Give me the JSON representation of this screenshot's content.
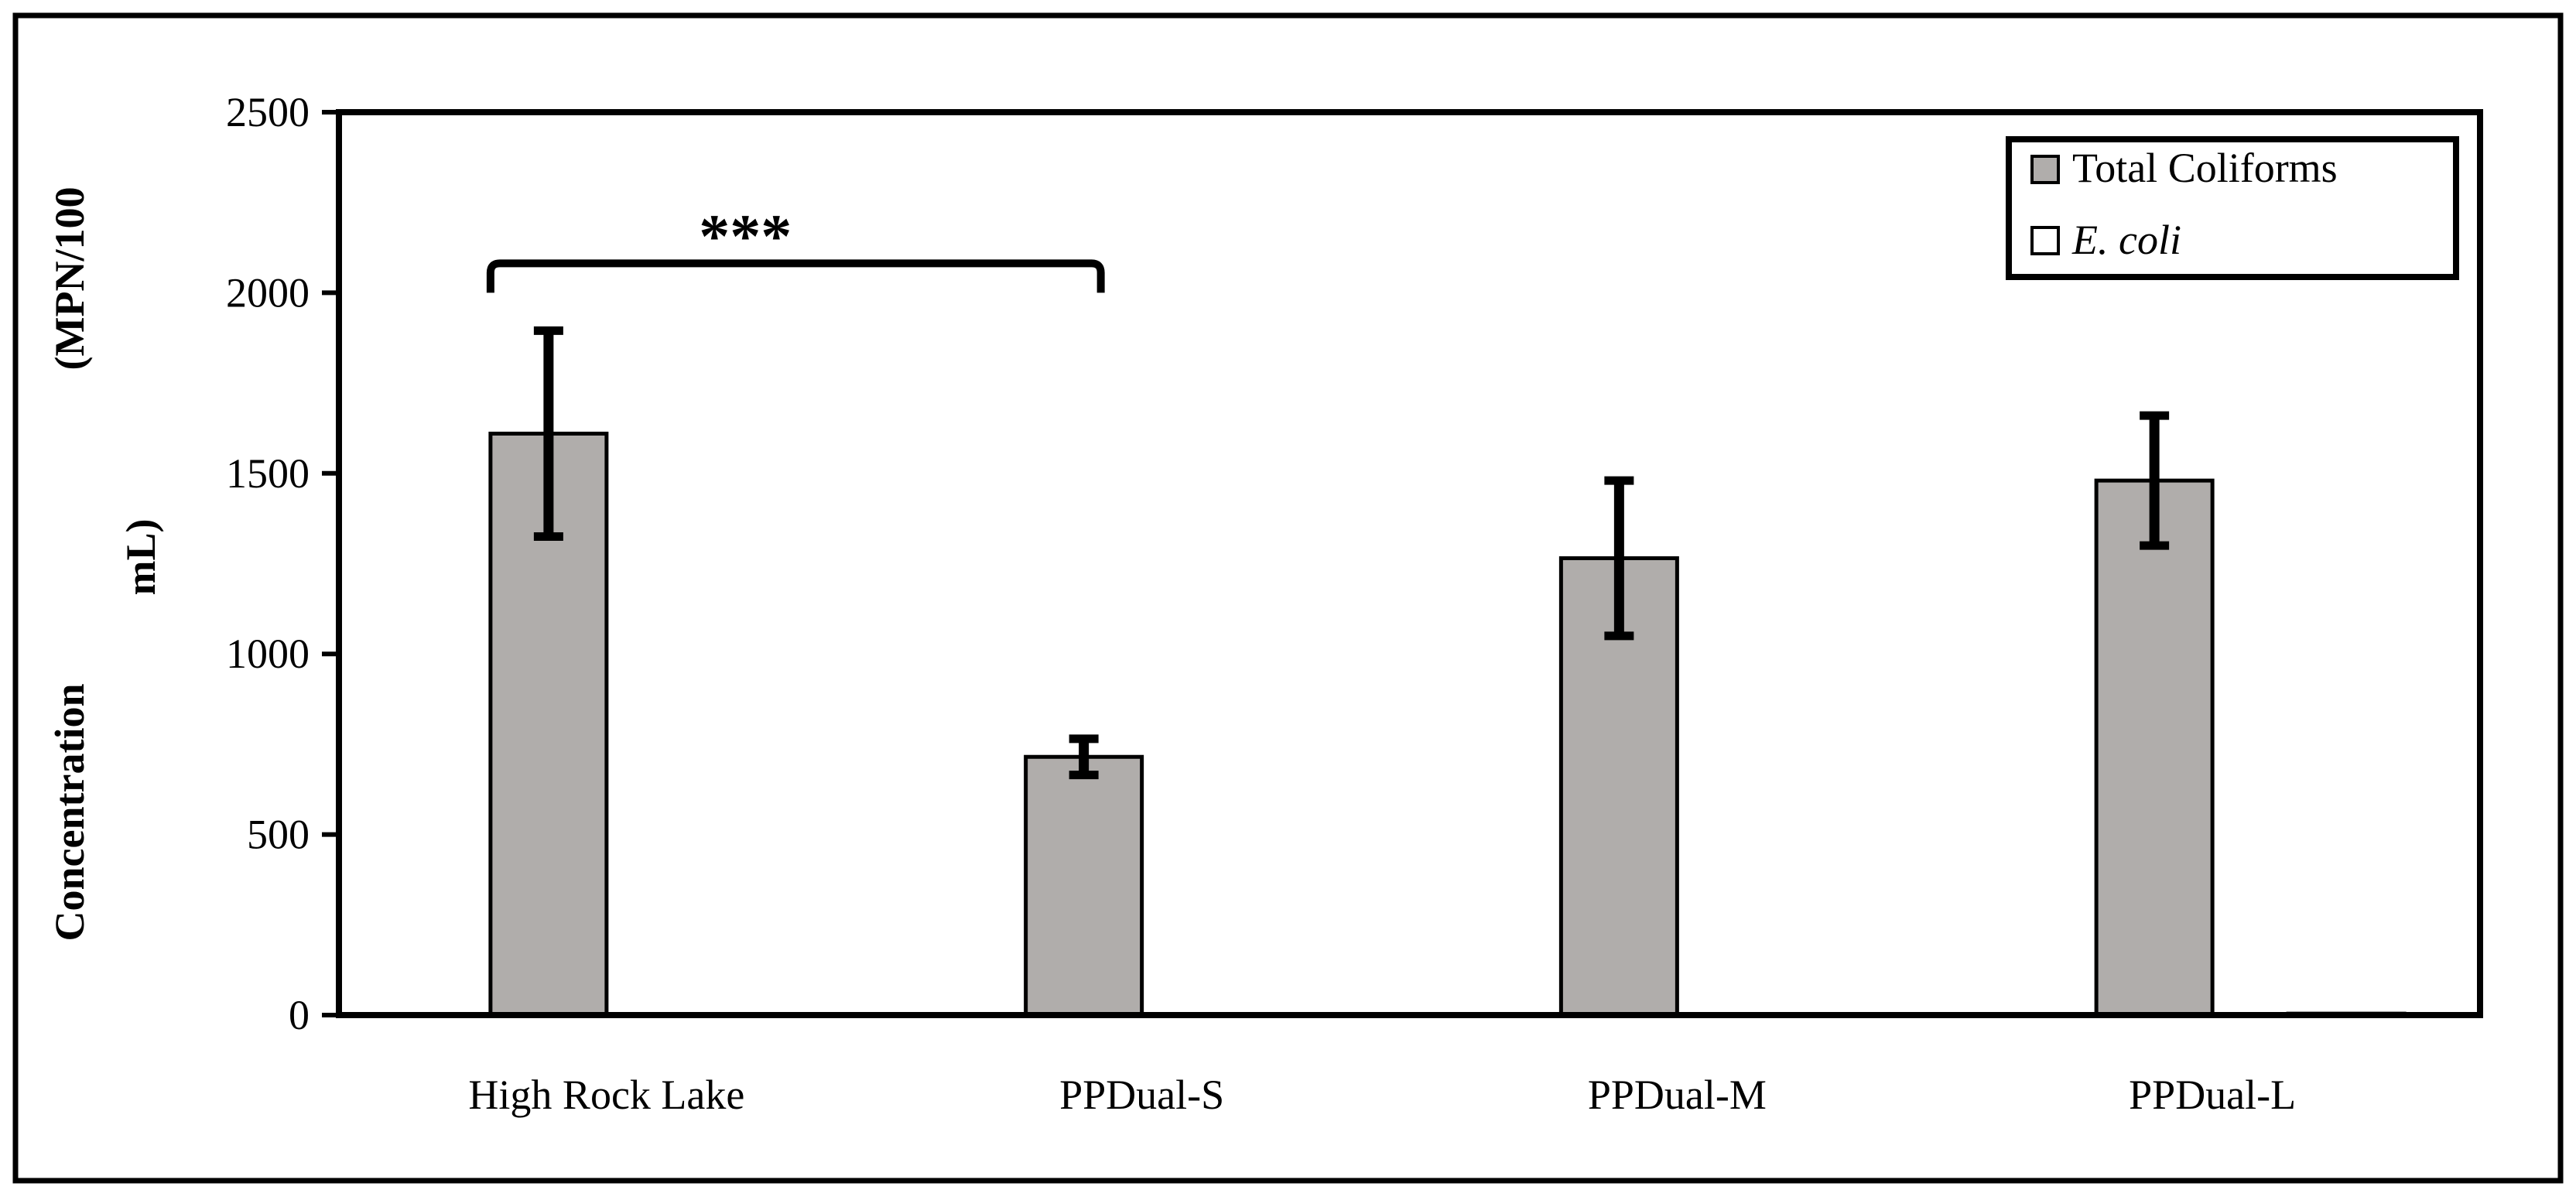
{
  "chart_data": {
    "type": "bar",
    "categories": [
      "High Rock Lake",
      "PPDual-S",
      "PPDual-M",
      "PPDual-L"
    ],
    "series": [
      {
        "name": "Total Coliforms",
        "values": [
          1610,
          715,
          1265,
          1480
        ],
        "errors": [
          285,
          50,
          215,
          180
        ],
        "color": "#b0adab"
      },
      {
        "name": "E. coli",
        "name_prefix": "E. coli",
        "values": [
          3,
          2,
          3,
          4
        ],
        "errors": [
          0,
          0,
          0,
          0
        ],
        "color": "#ffffff"
      }
    ],
    "ylim": [
      0,
      2500
    ],
    "yticks": [
      0,
      500,
      1000,
      1500,
      2000,
      2500
    ],
    "ylabel_lines": [
      "Concentration",
      "(MPN/100",
      "mL)"
    ],
    "xlabel": "",
    "title": "",
    "legend_position": "top-right",
    "grid": false,
    "annotations": [
      {
        "text": "***",
        "from_category": "High Rock Lake",
        "to_category": "PPDual-S",
        "bracket_y": 2000
      }
    ]
  }
}
